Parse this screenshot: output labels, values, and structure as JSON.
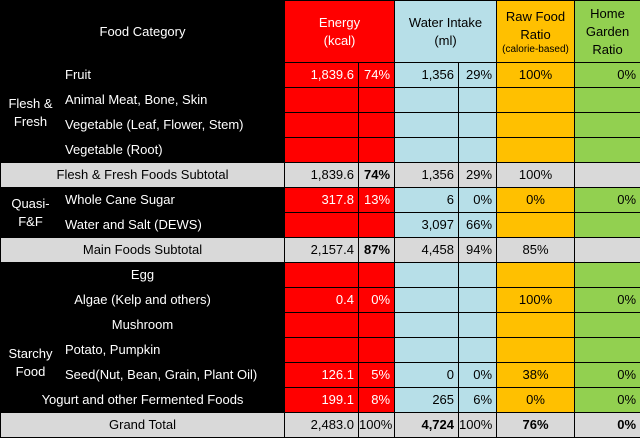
{
  "header": {
    "category": "Food Category",
    "energy_line1": "Energy",
    "energy_line2": "(kcal)",
    "water_line1": "Water Intake",
    "water_line2": "(ml)",
    "raw_line1": "Raw Food",
    "raw_line2": "Ratio",
    "raw_line3": "(calorie-based)",
    "home_line1": "Home",
    "home_line2": "Garden",
    "home_line3": "Ratio"
  },
  "groups": {
    "flesh": "Flesh & Fresh",
    "quasi": "Quasi-F&F",
    "starchy": "Starchy Food"
  },
  "rows": [
    {
      "label": "Fruit",
      "energy": "1,839.6",
      "energy_pct": "74%",
      "water": "1,356",
      "water_pct": "29%",
      "raw": "100%",
      "home": "0%"
    },
    {
      "label": "Animal Meat, Bone, Skin",
      "energy": "",
      "energy_pct": "",
      "water": "",
      "water_pct": "",
      "raw": "",
      "home": ""
    },
    {
      "label": "Vegetable (Leaf, Flower, Stem)",
      "energy": "",
      "energy_pct": "",
      "water": "",
      "water_pct": "",
      "raw": "",
      "home": ""
    },
    {
      "label": "Vegetable (Root)",
      "energy": "",
      "energy_pct": "",
      "water": "",
      "water_pct": "",
      "raw": "",
      "home": ""
    },
    {
      "label": "Flesh & Fresh Foods Subtotal",
      "energy": "1,839.6",
      "energy_pct": "74%",
      "water": "1,356",
      "water_pct": "29%",
      "raw": "100%",
      "home": ""
    },
    {
      "label": "Whole Cane Sugar",
      "energy": "317.8",
      "energy_pct": "13%",
      "water": "6",
      "water_pct": "0%",
      "raw": "0%",
      "home": "0%"
    },
    {
      "label": "Water and Salt (DEWS)",
      "energy": "",
      "energy_pct": "",
      "water": "3,097",
      "water_pct": "66%",
      "raw": "",
      "home": ""
    },
    {
      "label": "Main Foods Subtotal",
      "energy": "2,157.4",
      "energy_pct": "87%",
      "water": "4,458",
      "water_pct": "94%",
      "raw": "85%",
      "home": ""
    },
    {
      "label": "Egg",
      "energy": "",
      "energy_pct": "",
      "water": "",
      "water_pct": "",
      "raw": "",
      "home": ""
    },
    {
      "label": "Algae (Kelp and others)",
      "energy": "0.4",
      "energy_pct": "0%",
      "water": "",
      "water_pct": "",
      "raw": "100%",
      "home": "0%"
    },
    {
      "label": "Mushroom",
      "energy": "",
      "energy_pct": "",
      "water": "",
      "water_pct": "",
      "raw": "",
      "home": ""
    },
    {
      "label": "Potato, Pumpkin",
      "energy": "",
      "energy_pct": "",
      "water": "",
      "water_pct": "",
      "raw": "",
      "home": ""
    },
    {
      "label": "Seed(Nut, Bean, Grain, Plant Oil)",
      "energy": "126.1",
      "energy_pct": "5%",
      "water": "0",
      "water_pct": "0%",
      "raw": "38%",
      "home": "0%"
    },
    {
      "label": "Yogurt and other Fermented Foods",
      "energy": "199.1",
      "energy_pct": "8%",
      "water": "265",
      "water_pct": "6%",
      "raw": "0%",
      "home": "0%"
    },
    {
      "label": "Grand Total",
      "energy": "2,483.0",
      "energy_pct": "100%",
      "water": "4,724",
      "water_pct": "100%",
      "raw": "76%",
      "home": "0%"
    }
  ]
}
